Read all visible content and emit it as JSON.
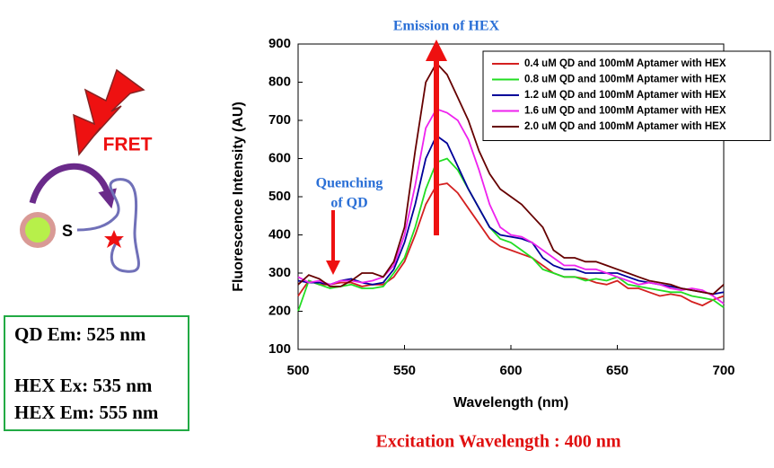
{
  "chart_data": {
    "type": "line",
    "xlabel": "Wavelength (nm)",
    "ylabel": "Fluorescence Intensity (AU)",
    "x": [
      500,
      505,
      510,
      515,
      520,
      525,
      530,
      535,
      540,
      545,
      550,
      555,
      560,
      565,
      570,
      575,
      580,
      585,
      590,
      595,
      600,
      605,
      610,
      615,
      620,
      625,
      630,
      635,
      640,
      645,
      650,
      655,
      660,
      665,
      670,
      675,
      680,
      685,
      690,
      695,
      700
    ],
    "xlim": [
      500,
      700
    ],
    "xticks": [
      500,
      550,
      600,
      650,
      700
    ],
    "ylim": [
      100,
      900
    ],
    "yticks": [
      100,
      200,
      300,
      400,
      500,
      600,
      700,
      800,
      900
    ],
    "grid": false,
    "legend": "upper right",
    "series": [
      {
        "name": "0.4 uM QD and 100mM Aptamer with HEX",
        "color": "#d42020",
        "values": [
          240,
          280,
          270,
          270,
          275,
          275,
          265,
          270,
          270,
          290,
          330,
          400,
          480,
          530,
          535,
          510,
          470,
          430,
          390,
          370,
          360,
          350,
          340,
          320,
          300,
          290,
          290,
          285,
          275,
          270,
          280,
          260,
          260,
          250,
          240,
          245,
          240,
          225,
          215,
          230,
          240
        ]
      },
      {
        "name": "0.8 uM QD and 100mM Aptamer with HEX",
        "color": "#22dd22",
        "values": [
          200,
          280,
          270,
          260,
          265,
          270,
          260,
          260,
          265,
          300,
          340,
          420,
          520,
          590,
          600,
          570,
          520,
          470,
          420,
          390,
          380,
          360,
          340,
          310,
          300,
          290,
          290,
          280,
          285,
          280,
          290,
          270,
          265,
          260,
          255,
          250,
          250,
          240,
          235,
          230,
          210
        ]
      },
      {
        "name": "1.2 uM QD and 100mM Aptamer with HEX",
        "color": "#000099",
        "values": [
          280,
          275,
          275,
          270,
          280,
          285,
          275,
          270,
          275,
          310,
          380,
          480,
          600,
          660,
          640,
          580,
          520,
          470,
          420,
          400,
          395,
          390,
          380,
          340,
          320,
          310,
          310,
          300,
          300,
          300,
          300,
          290,
          280,
          275,
          270,
          265,
          260,
          255,
          250,
          245,
          250
        ]
      },
      {
        "name": "1.6 uM QD and 100mM Aptamer with HEX",
        "color": "#ee22ee",
        "values": [
          290,
          275,
          280,
          270,
          280,
          280,
          275,
          280,
          290,
          320,
          400,
          530,
          680,
          730,
          720,
          700,
          650,
          570,
          480,
          420,
          400,
          395,
          380,
          360,
          340,
          320,
          320,
          310,
          310,
          300,
          290,
          280,
          270,
          275,
          270,
          260,
          255,
          260,
          255,
          240,
          220
        ]
      },
      {
        "name": "2.0 uM QD and 100mM Aptamer with HEX",
        "color": "#660000",
        "values": [
          270,
          295,
          285,
          265,
          265,
          280,
          300,
          300,
          290,
          330,
          420,
          620,
          800,
          850,
          820,
          760,
          700,
          620,
          560,
          520,
          500,
          480,
          450,
          420,
          360,
          340,
          340,
          330,
          330,
          320,
          310,
          300,
          290,
          280,
          275,
          270,
          260,
          255,
          250,
          245,
          270
        ]
      }
    ],
    "annotations": {
      "emission": "Emission of HEX",
      "quenching": [
        "Quenching",
        "of QD"
      ]
    }
  },
  "diagram": {
    "fret_label": "FRET",
    "molecule_label": "S",
    "info_box": [
      "QD  Em: 525 nm",
      "HEX Ex: 535 nm",
      "HEX Em: 555 nm"
    ]
  },
  "footer": "Excitation Wavelength : 400 nm"
}
